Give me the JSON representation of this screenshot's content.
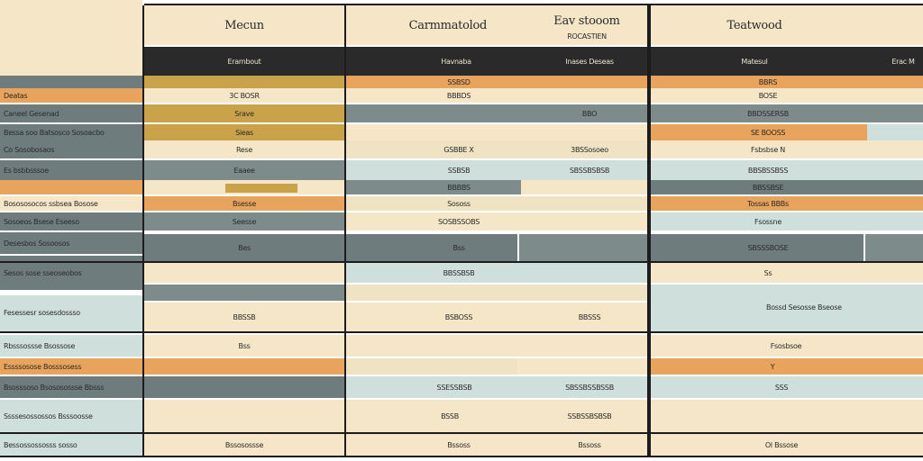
{
  "headers": {
    "col1": "Mecun",
    "col2": "Carmmatolod",
    "col3_line1": "Eav stooom",
    "col3_line2": "ROCASTIEN",
    "col4": "Teatwood"
  },
  "subheaders": {
    "col1": "Erarnbout",
    "col2": "Havnaba",
    "col3": "Inases  Deseas",
    "col4": "Matesul",
    "col5": "Erac M"
  },
  "rows": [
    {
      "label": "Deatas",
      "c1": "3C BOSR",
      "c2": "SSBSD",
      "c3": "",
      "c4": "BBRS",
      "c5": "BOSE"
    },
    {
      "label": "Caneel Gesenad",
      "c1": "Srave",
      "c2": "BBBDS",
      "c3": "BBO",
      "c4": "BBDSSERSB",
      "c5": ""
    },
    {
      "label": "Bessa soo Batsosco Sosoacbo",
      "c1": "Sieas",
      "c2": "",
      "c3": "",
      "c4": "SE BOOSS",
      "c5": ""
    },
    {
      "label": "Co Sosobosaos",
      "c1": "Rese",
      "c2": "GSBBE X",
      "c3": "3BSSosoeo",
      "c4": "Fsbsbse  N",
      "c5": ""
    },
    {
      "label": "Es bsbbsssoe",
      "c1": "Eaaee",
      "c2": "SSBSB",
      "c3": "SBSSBSBSB",
      "c4": "BBSBSSBSS",
      "c5": ""
    },
    {
      "label": "",
      "c1": "",
      "c2": "BBBBS",
      "c3": "",
      "c4": "BBSSBSE",
      "c5": ""
    },
    {
      "label": "Bosososocos ssbsea Bosose",
      "c1": "Bsesse",
      "c2": "Sososs",
      "c3": "",
      "c4": "Tossas BBBs",
      "c5": ""
    },
    {
      "label": "Sosoeos Bsese Eseeso",
      "c1": "Seesse",
      "c2": "SOSBSSOBS",
      "c3": "",
      "c4": "Fsossne",
      "c5": ""
    },
    {
      "label": "Desesbos Sosoosos",
      "c1": "Bes",
      "c2": "Bss",
      "c3": "",
      "c4": "SBSSSBOSE",
      "c5": ""
    },
    {
      "label": "Sesos sose sseoseobos",
      "c1": "",
      "c2": "BBSSBSB",
      "c3": "",
      "c4": "Ss",
      "c5": ""
    },
    {
      "label": "Fesessesr sosesdossso",
      "c1": "BBSSB",
      "c2": "BSBOSS",
      "c3": "BBSSS",
      "c4": "Bossd Sesosse Bseose",
      "c5": ""
    },
    {
      "label": "Rbsssossse Bsossose",
      "c1": "Bss",
      "c2": "",
      "c3": "",
      "c4": "Fsosbsoe",
      "c5": ""
    },
    {
      "label": "Essssosose Bosssosess",
      "c1": "",
      "c2": "",
      "c3": "",
      "c4": "Y",
      "c5": ""
    },
    {
      "label": "Bsosssoso Bsososossse Bbsss",
      "c1": "",
      "c2": "SSESSBSB",
      "c3": "SBSSBSSBSSB",
      "c4": "SSS",
      "c5": ""
    },
    {
      "label": "Ssssesossossos Bsssoosse",
      "c1": "",
      "c2": "BSSB",
      "c3": "SSBSSBSBSB",
      "c4": "",
      "c5": ""
    },
    {
      "label": "Bessossossosss sosso",
      "c1": "Bssosossse",
      "c2": "Bssoss",
      "c3": "Bssoss",
      "c4": "Ol Bssose",
      "c5": ""
    }
  ],
  "colors": {
    "cream": "#f4e6c7",
    "orange": "#e8a35c",
    "slate": "#6e7c7e",
    "pale": "#cfe0dc",
    "gold": "#c9a24a",
    "dark": "#2a2a2a"
  }
}
